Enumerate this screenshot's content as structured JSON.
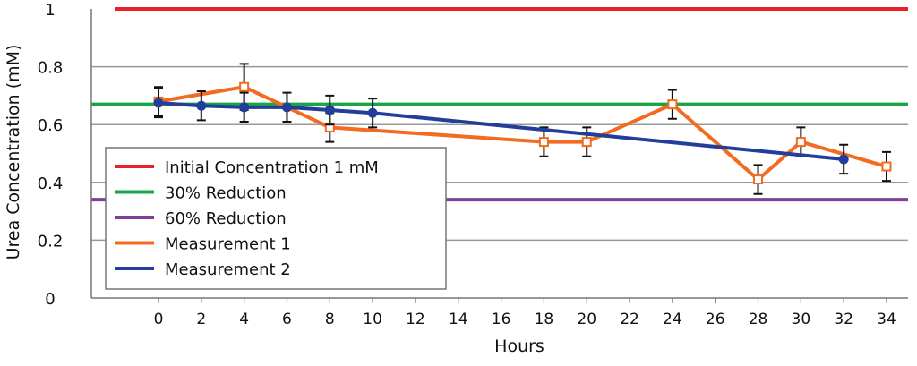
{
  "chart_data": {
    "type": "line",
    "title": "",
    "xlabel": "Hours",
    "ylabel": "Urea Concentration (mM)",
    "xlim": [
      -3,
      35
    ],
    "ylim": [
      0,
      1
    ],
    "x_ticks": [
      0,
      2,
      4,
      6,
      8,
      10,
      12,
      14,
      16,
      18,
      20,
      22,
      24,
      26,
      28,
      30,
      32,
      34
    ],
    "y_ticks": [
      0,
      0.2,
      0.4,
      0.6,
      0.8,
      1
    ],
    "y_tick_labels": [
      "0",
      "0.2",
      "0.4",
      "0.6",
      "0.8",
      "1"
    ],
    "grid": "horizontal",
    "legend_position": "bottom-left",
    "reference_lines": [
      {
        "name": "Initial Concentration 1 mM",
        "y": 1.0,
        "color": "#e8202a"
      },
      {
        "name": "30% Reduction",
        "y": 0.67,
        "color": "#1aa548"
      },
      {
        "name": "60% Reduction",
        "y": 0.34,
        "color": "#7d3f98"
      }
    ],
    "series": [
      {
        "name": "Measurement 1",
        "color": "#f26b21",
        "marker": "open-square",
        "x": [
          0,
          4,
          8,
          18,
          20,
          24,
          28,
          30,
          34
        ],
        "y": [
          0.68,
          0.73,
          0.59,
          0.54,
          0.54,
          0.67,
          0.41,
          0.54,
          0.455
        ],
        "error": [
          0.05,
          0.08,
          0.05,
          0.05,
          0.05,
          0.05,
          0.05,
          0.05,
          0.05
        ]
      },
      {
        "name": "Measurement 2",
        "color": "#233e99",
        "marker": "filled-circle",
        "x": [
          0,
          2,
          4,
          6,
          8,
          10,
          32
        ],
        "y": [
          0.675,
          0.665,
          0.66,
          0.66,
          0.65,
          0.64,
          0.48
        ],
        "error": [
          0.05,
          0.05,
          0.05,
          0.05,
          0.05,
          0.05,
          0.05
        ]
      }
    ]
  }
}
